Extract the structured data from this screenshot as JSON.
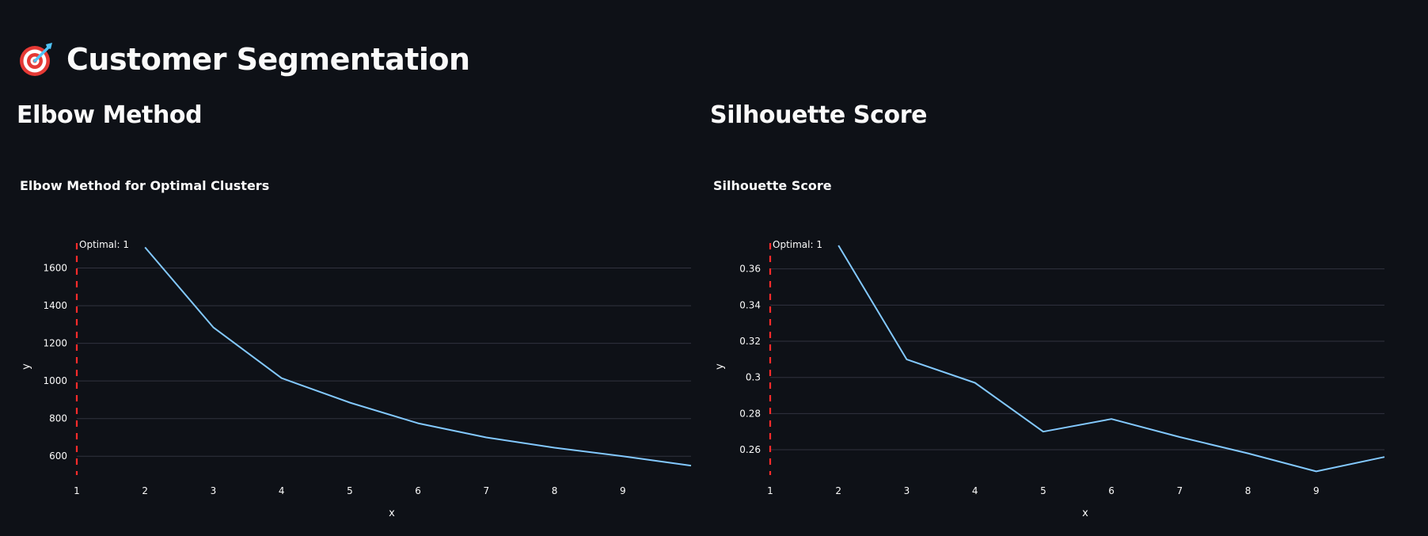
{
  "app": {
    "title": "Customer Segmentation",
    "icon": "target-icon"
  },
  "sections": [
    {
      "heading": "Elbow Method"
    },
    {
      "heading": "Silhouette Score"
    }
  ],
  "colors": {
    "background": "#0e1117",
    "text": "#fafafa",
    "line": "#83c9ff",
    "optimal_marker": "#ff2b2b",
    "grid": "#31333f"
  },
  "chart_data": [
    {
      "type": "line",
      "title": "Elbow Method for Optimal Clusters",
      "xlabel": "x",
      "ylabel": "y",
      "x": [
        2,
        3,
        4,
        5,
        6,
        7,
        8,
        9,
        10
      ],
      "values": [
        1710,
        1285,
        1015,
        885,
        775,
        700,
        645,
        600,
        550
      ],
      "xlim": [
        1,
        10
      ],
      "ylim": [
        500,
        1720
      ],
      "xticks": [
        1,
        2,
        3,
        4,
        5,
        6,
        7,
        8,
        9
      ],
      "yticks": [
        600,
        800,
        1000,
        1200,
        1400,
        1600
      ],
      "grid": true,
      "annotation": {
        "type": "vline",
        "x": 1,
        "label": "Optimal: 1",
        "style": "dashed"
      }
    },
    {
      "type": "line",
      "title": "Silhouette Score",
      "xlabel": "x",
      "ylabel": "y",
      "x": [
        2,
        3,
        4,
        5,
        6,
        7,
        8,
        9,
        10
      ],
      "values": [
        0.373,
        0.31,
        0.297,
        0.27,
        0.277,
        0.267,
        0.258,
        0.248,
        0.256
      ],
      "xlim": [
        1,
        10
      ],
      "ylim": [
        0.246,
        0.373
      ],
      "xticks": [
        1,
        2,
        3,
        4,
        5,
        6,
        7,
        8,
        9
      ],
      "yticks": [
        0.26,
        0.28,
        0.3,
        0.32,
        0.34,
        0.36
      ],
      "ytick_labels": [
        "0.26",
        "0.28",
        "0.3",
        "0.32",
        "0.34",
        "0.36"
      ],
      "grid": true,
      "annotation": {
        "type": "vline",
        "x": 1,
        "label": "Optimal: 1",
        "style": "dashed"
      }
    }
  ]
}
